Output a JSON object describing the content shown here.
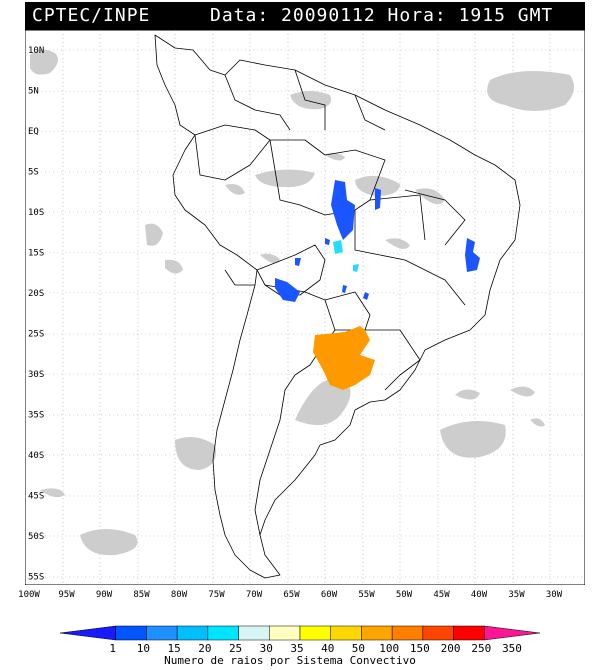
{
  "header": {
    "source": "CPTEC/INPE",
    "datetime": "Data: 20090112 Hora: 1915 GMT"
  },
  "map": {
    "lat_labels": [
      "10N",
      "5N",
      "EQ",
      "5S",
      "10S",
      "15S",
      "20S",
      "25S",
      "30S",
      "35S",
      "40S",
      "45S",
      "50S",
      "55S"
    ],
    "lon_labels": [
      "100W",
      "95W",
      "90W",
      "85W",
      "80W",
      "75W",
      "70W",
      "65W",
      "60W",
      "55W",
      "50W",
      "45W",
      "40W",
      "35W",
      "30W"
    ]
  },
  "colorbar": {
    "title": "Numero de raios por Sistema Convectivo",
    "ticks": [
      "1",
      "10",
      "15",
      "20",
      "25",
      "30",
      "35",
      "40",
      "50",
      "100",
      "150",
      "200",
      "250",
      "350"
    ],
    "colors": [
      "#1a1aff",
      "#0055ff",
      "#1e90ff",
      "#00bfff",
      "#00e5ff",
      "#d8f5f5",
      "#ffffc0",
      "#ffff00",
      "#ffd700",
      "#ffa500",
      "#ff7f00",
      "#ff4500",
      "#ff0000",
      "#ff1493"
    ]
  },
  "colors": {
    "clouds": "#c8c8c8",
    "storm_orange": "#ff9900",
    "storm_blue": "#1a55ff",
    "storm_cyan": "#22ddff"
  }
}
